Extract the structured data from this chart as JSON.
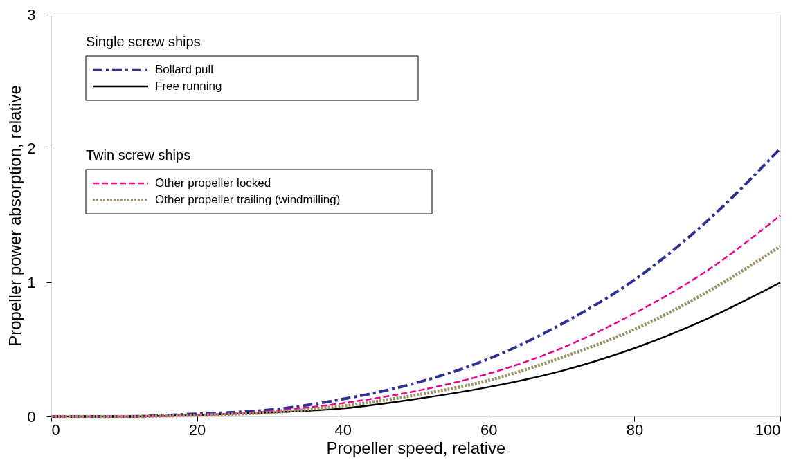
{
  "chart_data": {
    "type": "line",
    "xlabel": "Propeller speed, relative",
    "ylabel": "Propeller power absorption, relative",
    "x": [
      0,
      10,
      20,
      30,
      40,
      50,
      60,
      70,
      80,
      90,
      100
    ],
    "series": [
      {
        "name": "Bollard pull",
        "color": "#2e3192",
        "line_style": "dashdot",
        "values": [
          0,
          0,
          0.02,
          0.05,
          0.13,
          0.25,
          0.43,
          0.69,
          1.02,
          1.46,
          2.0
        ]
      },
      {
        "name": "Free running",
        "color": "#000000",
        "line_style": "solid",
        "values": [
          0,
          0,
          0.01,
          0.03,
          0.06,
          0.13,
          0.22,
          0.34,
          0.51,
          0.73,
          1.0
        ]
      },
      {
        "name": "Other propeller locked",
        "color": "#ec008c",
        "line_style": "dashed",
        "values": [
          0,
          0,
          0.01,
          0.04,
          0.1,
          0.19,
          0.32,
          0.51,
          0.77,
          1.09,
          1.5
        ]
      },
      {
        "name": "Other propeller trailing (windmilling)",
        "color": "#9c9467",
        "line_style": "dotted",
        "values": [
          0,
          0,
          0.01,
          0.03,
          0.08,
          0.16,
          0.27,
          0.44,
          0.65,
          0.93,
          1.27
        ]
      }
    ],
    "annotations": [
      "Single screw ships",
      "Twin screw ships"
    ],
    "xlim": [
      0,
      100
    ],
    "xticks": [
      0,
      20,
      40,
      60,
      80,
      100
    ],
    "ylim": [
      0,
      3
    ],
    "yticks": [
      0,
      1,
      2,
      3
    ],
    "grid": false,
    "legend": "top left",
    "marker": "none"
  }
}
